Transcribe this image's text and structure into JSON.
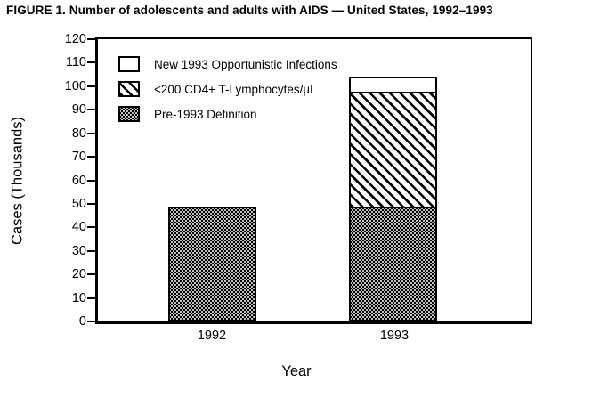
{
  "chart_data": {
    "type": "bar",
    "stacked": true,
    "title": "FIGURE 1. Number of adolescents and adults with AIDS — United States, 1992–1993",
    "xlabel": "Year",
    "ylabel": "Cases (Thousands)",
    "categories": [
      "1992",
      "1993"
    ],
    "series": [
      {
        "name": "Pre-1993 Definition",
        "pattern": "stipple",
        "values": [
          49,
          49
        ]
      },
      {
        "name": "<200 CD4+ T-Lymphocytes/µL",
        "pattern": "hatch",
        "values": [
          0,
          49
        ]
      },
      {
        "name": "New 1993 Opportunistic Infections",
        "pattern": "white",
        "values": [
          0,
          6
        ]
      }
    ],
    "totals": [
      49,
      104
    ],
    "ylim": [
      0,
      120
    ],
    "yticks": [
      0,
      10,
      20,
      30,
      40,
      50,
      60,
      70,
      80,
      90,
      100,
      110,
      120
    ],
    "grid": false,
    "legend": {
      "position": "top-left-inside",
      "items": [
        {
          "label": "New 1993 Opportunistic Infections",
          "pattern": "white"
        },
        {
          "label": "<200 CD4+ T-Lymphocytes/µL",
          "pattern": "hatch"
        },
        {
          "label": "Pre-1993 Definition",
          "pattern": "stipple"
        }
      ]
    }
  },
  "colors": {
    "ink": "#000000",
    "paper": "#ffffff"
  }
}
